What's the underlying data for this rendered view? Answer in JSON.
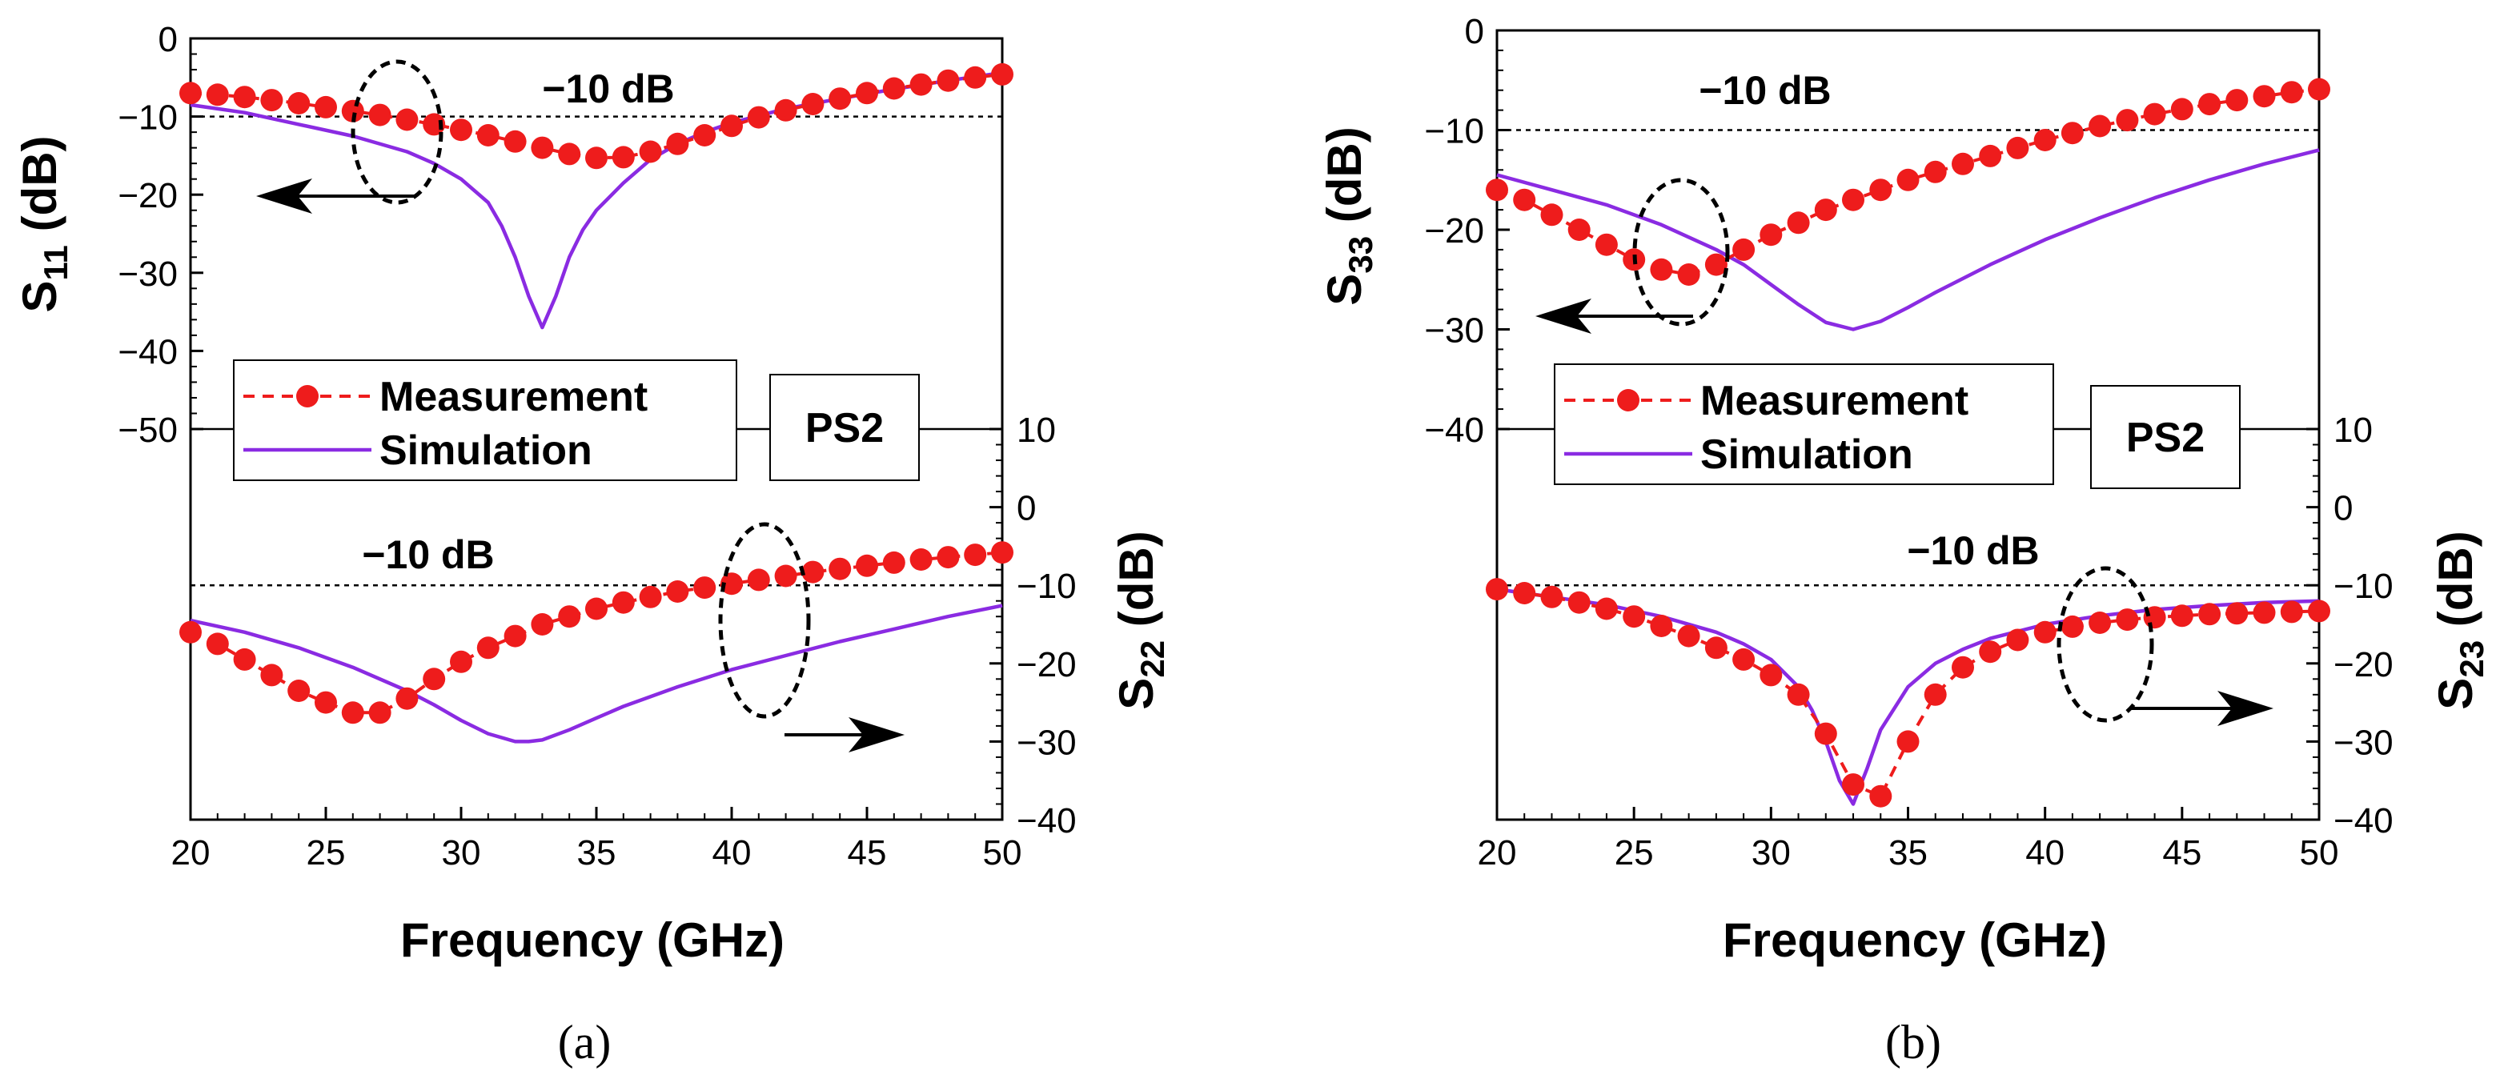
{
  "chart_data": [
    {
      "type": "line",
      "caption": "(a)",
      "title": "",
      "xlabel": "Frequency (GHz)",
      "xlim": [
        20,
        50
      ],
      "xticks": [
        "20",
        "25",
        "30",
        "35",
        "40",
        "45",
        "50"
      ],
      "legend": [
        "Measurement",
        "Simulation"
      ],
      "box_label": "PS2",
      "colors": {
        "measurement": "#ee1c1c",
        "simulation": "#8a2be2"
      },
      "top": {
        "ylabel_main": "S",
        "ylabel_sub": "11",
        "ylabel_tail": " (dB)",
        "ylim": [
          -50,
          0
        ],
        "yticks": [
          "0",
          "−10",
          "−20",
          "−30",
          "−40",
          "−50"
        ],
        "ref_line": -10,
        "ref_label": "−10 dB",
        "measurement": {
          "x": [
            20,
            21,
            22,
            23,
            24,
            25,
            26,
            27,
            28,
            29,
            30,
            31,
            32,
            33,
            34,
            35,
            36,
            37,
            38,
            39,
            40,
            41,
            42,
            43,
            44,
            45,
            46,
            47,
            48,
            49,
            50
          ],
          "y": [
            -7,
            -7.2,
            -7.5,
            -7.9,
            -8.3,
            -8.8,
            -9.3,
            -9.8,
            -10.4,
            -11,
            -11.7,
            -12.4,
            -13.2,
            -14,
            -14.8,
            -15.3,
            -15.2,
            -14.5,
            -13.5,
            -12.4,
            -11.2,
            -10.1,
            -9.2,
            -8.4,
            -7.7,
            -7,
            -6.4,
            -5.9,
            -5.4,
            -5,
            -4.6
          ]
        },
        "simulation": {
          "x": [
            20,
            22,
            24,
            26,
            28,
            29,
            30,
            31,
            31.5,
            32,
            32.5,
            33,
            33.5,
            34,
            34.5,
            35,
            36,
            37,
            38,
            39,
            40,
            42,
            44,
            46,
            48,
            50
          ],
          "y": [
            -8.5,
            -9.5,
            -11,
            -12.5,
            -14.5,
            -16,
            -18,
            -21,
            -24,
            -28,
            -33,
            -37,
            -33,
            -28,
            -24.5,
            -22,
            -18.5,
            -15.5,
            -13.5,
            -12,
            -10.8,
            -9,
            -7.7,
            -6.5,
            -5.4,
            -4.4
          ]
        },
        "arrow": "left"
      },
      "bottom": {
        "ylabel_main": "S",
        "ylabel_sub": "22",
        "ylabel_tail": " (dB)",
        "ylim": [
          -40,
          10
        ],
        "yticks": [
          "10",
          "0",
          "−10",
          "−20",
          "−30",
          "−40"
        ],
        "ref_line": -10,
        "ref_label": "−10 dB",
        "measurement": {
          "x": [
            20,
            21,
            22,
            23,
            24,
            25,
            26,
            27,
            28,
            29,
            30,
            31,
            32,
            33,
            34,
            35,
            36,
            37,
            38,
            39,
            40,
            41,
            42,
            43,
            44,
            45,
            46,
            47,
            48,
            49,
            50
          ],
          "y": [
            -16,
            -17.5,
            -19.5,
            -21.5,
            -23.5,
            -25,
            -26.3,
            -26.3,
            -24.5,
            -22,
            -19.8,
            -18,
            -16.5,
            -15,
            -14,
            -13,
            -12.2,
            -11.5,
            -10.8,
            -10.3,
            -9.8,
            -9.3,
            -8.8,
            -8.3,
            -7.9,
            -7.5,
            -7.1,
            -6.7,
            -6.4,
            -6.1,
            -5.8
          ]
        },
        "simulation": {
          "x": [
            20,
            22,
            24,
            26,
            28,
            29,
            30,
            31,
            32,
            32.5,
            33,
            34,
            35,
            36,
            38,
            40,
            42,
            44,
            46,
            48,
            50
          ],
          "y": [
            -14.5,
            -16,
            -18,
            -20.5,
            -23.5,
            -25.3,
            -27.3,
            -29,
            -30,
            -30,
            -29.8,
            -28.5,
            -27,
            -25.5,
            -23,
            -20.8,
            -19,
            -17.2,
            -15.6,
            -14,
            -12.6
          ]
        },
        "arrow": "right"
      }
    },
    {
      "type": "line",
      "caption": "(b)",
      "title": "",
      "xlabel": "Frequency (GHz)",
      "xlim": [
        20,
        50
      ],
      "xticks": [
        "20",
        "25",
        "30",
        "35",
        "40",
        "45",
        "50"
      ],
      "legend": [
        "Measurement",
        "Simulation"
      ],
      "box_label": "PS2",
      "colors": {
        "measurement": "#ee1c1c",
        "simulation": "#8a2be2"
      },
      "top": {
        "ylabel_main": "S",
        "ylabel_sub": "33",
        "ylabel_tail": " (dB)",
        "ylim": [
          -40,
          0
        ],
        "yticks": [
          "0",
          "−10",
          "−20",
          "−30",
          "−40"
        ],
        "ref_line": -10,
        "ref_label": "−10 dB",
        "measurement": {
          "x": [
            20,
            21,
            22,
            23,
            24,
            25,
            26,
            27,
            28,
            29,
            30,
            31,
            32,
            33,
            34,
            35,
            36,
            37,
            38,
            39,
            40,
            41,
            42,
            43,
            44,
            45,
            46,
            47,
            48,
            49,
            50
          ],
          "y": [
            -16,
            -17,
            -18.5,
            -20,
            -21.5,
            -23,
            -24,
            -24.5,
            -23.5,
            -22,
            -20.5,
            -19.3,
            -18,
            -17,
            -16,
            -15,
            -14.2,
            -13.4,
            -12.6,
            -11.8,
            -11,
            -10.3,
            -9.6,
            -9,
            -8.4,
            -7.9,
            -7.4,
            -7,
            -6.6,
            -6.2,
            -5.9
          ]
        },
        "simulation": {
          "x": [
            20,
            22,
            24,
            26,
            28,
            29,
            30,
            31,
            32,
            33,
            34,
            35,
            36,
            38,
            40,
            42,
            44,
            46,
            48,
            50
          ],
          "y": [
            -14.5,
            -16,
            -17.5,
            -19.5,
            -22,
            -23.5,
            -25.5,
            -27.5,
            -29.3,
            -30,
            -29.2,
            -27.8,
            -26.3,
            -23.5,
            -21,
            -18.8,
            -16.8,
            -15,
            -13.4,
            -12
          ]
        },
        "arrow": "left"
      },
      "bottom": {
        "ylabel_main": "S",
        "ylabel_sub": "23",
        "ylabel_tail": " (dB)",
        "ylim": [
          -40,
          10
        ],
        "yticks": [
          "10",
          "0",
          "−10",
          "−20",
          "−30",
          "−40"
        ],
        "ref_line": -10,
        "ref_label": "−10 dB",
        "measurement": {
          "x": [
            20,
            21,
            22,
            23,
            24,
            25,
            26,
            27,
            28,
            29,
            30,
            31,
            32,
            33,
            34,
            35,
            36,
            37,
            38,
            39,
            40,
            41,
            42,
            43,
            44,
            45,
            46,
            47,
            48,
            49,
            50
          ],
          "y": [
            -10.5,
            -11,
            -11.5,
            -12.2,
            -13,
            -14,
            -15.2,
            -16.5,
            -18,
            -19.5,
            -21.5,
            -24,
            -29,
            -35.5,
            -37,
            -30,
            -24,
            -20.5,
            -18.5,
            -17,
            -16,
            -15.3,
            -14.8,
            -14.4,
            -14.1,
            -13.9,
            -13.7,
            -13.6,
            -13.5,
            -13.4,
            -13.3
          ]
        },
        "simulation": {
          "x": [
            20,
            22,
            24,
            26,
            28,
            29,
            30,
            31,
            31.5,
            32,
            32.5,
            33,
            33.5,
            34,
            35,
            36,
            37,
            38,
            40,
            42,
            44,
            46,
            48,
            50
          ],
          "y": [
            -10.5,
            -11.5,
            -12.5,
            -14,
            -16,
            -17.5,
            -19.5,
            -23,
            -26,
            -30,
            -35,
            -38,
            -33.5,
            -28.5,
            -23,
            -20,
            -18.2,
            -16.8,
            -15,
            -13.9,
            -13.1,
            -12.6,
            -12.2,
            -12
          ]
        },
        "arrow": "right"
      }
    }
  ]
}
